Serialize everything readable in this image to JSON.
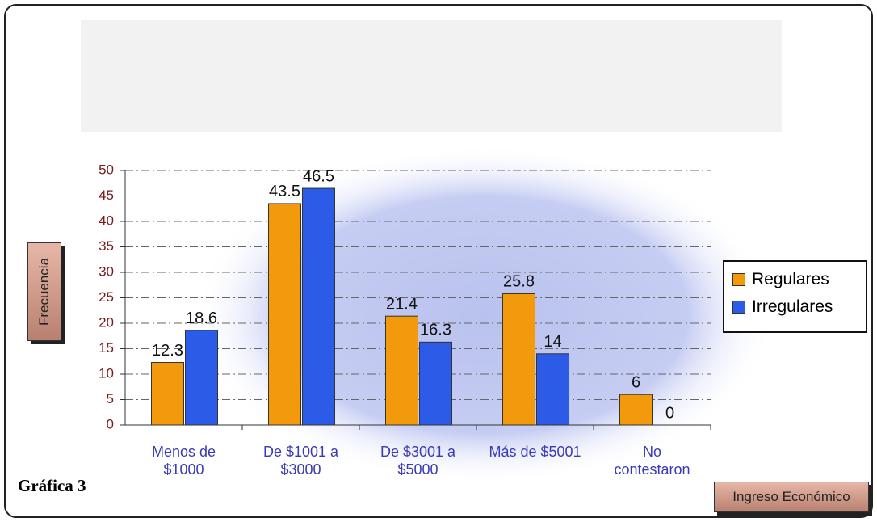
{
  "chart_data": {
    "type": "bar",
    "annotation": "Gráfica 3",
    "y_label": "Frecuencia",
    "x_label": "Ingreso Económico",
    "categories": [
      "Menos de $1000",
      "De $1001 a $3000",
      "De $3001 a $5000",
      "Más de $5001",
      "No contestaron"
    ],
    "series": [
      {
        "name": "Regulares",
        "color": "#f39a0c",
        "values": [
          12.3,
          43.5,
          21.4,
          25.8,
          6
        ]
      },
      {
        "name": "Irregulares",
        "color": "#2c5be8",
        "values": [
          18.6,
          46.5,
          16.3,
          14,
          0
        ]
      }
    ],
    "ylim": [
      0,
      50
    ],
    "yticks": [
      0,
      5,
      10,
      15,
      20,
      25,
      30,
      35,
      40,
      45,
      50
    ],
    "grid": true,
    "legend": "right"
  }
}
